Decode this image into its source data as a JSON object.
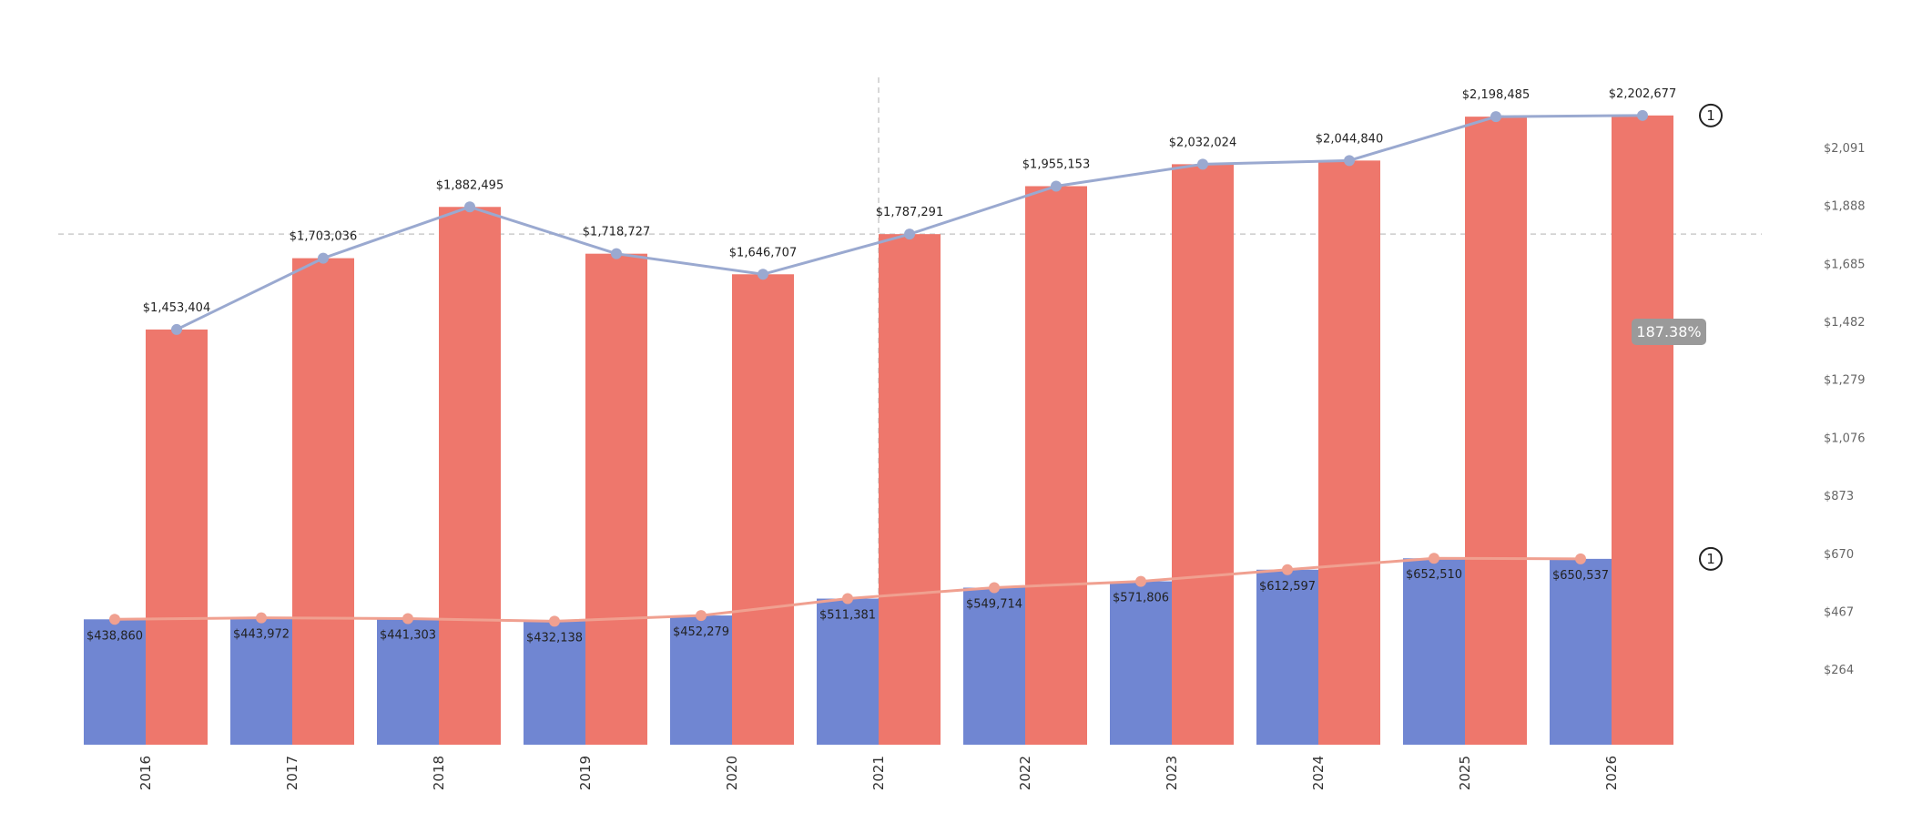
{
  "chart_data": {
    "type": "bar",
    "categories": [
      "2016",
      "2017",
      "2018",
      "2019",
      "2020",
      "2021",
      "2022",
      "2023",
      "2024",
      "2025",
      "2026"
    ],
    "series": [
      {
        "values": [
          438860,
          443972,
          441303,
          432138,
          452279,
          511381,
          549714,
          571806,
          612597,
          652510,
          650537
        ],
        "labels": [
          "$438,860",
          "$443,972",
          "$441,303",
          "$432,138",
          "$452,279",
          "$511,381",
          "$549,714",
          "$571,806",
          "$612,597",
          "$652,510",
          "$650,537"
        ],
        "color": "#7086d2",
        "line_color": "#f0a090"
      },
      {
        "values": [
          1453404,
          1703036,
          1882495,
          1718727,
          1646707,
          1787291,
          1955153,
          2032024,
          2044840,
          2198485,
          2202677
        ],
        "labels": [
          "$1,453,404",
          "$1,703,036",
          "$1,882,495",
          "$1,718,727",
          "$1,646,707",
          "$1,787,291",
          "$1,955,153",
          "$2,032,024",
          "$2,044,840",
          "$2,198,485",
          "$2,202,677"
        ],
        "color": "#ee776c",
        "line_color": "#9aa9d0"
      }
    ],
    "y_axis": {
      "position": "right",
      "ticks": [
        264,
        467,
        670,
        873,
        1076,
        1279,
        1482,
        1685,
        1888,
        2091
      ],
      "tick_labels": [
        "$264",
        "$467",
        "$670",
        "$873",
        "$1,076",
        "$1,279",
        "$1,482",
        "$1,685",
        "$1,888",
        "$2,091"
      ],
      "range_thousands": [
        7,
        2320
      ]
    },
    "reference_lines": {
      "horizontal_at": 1787291,
      "vertical_at_category": "2021",
      "style": "dashed"
    },
    "markers": [
      {
        "text": "1",
        "series_index": 1
      },
      {
        "text": "1",
        "series_index": 0
      }
    ],
    "annotation": {
      "text": "187.38%",
      "color": "#9a9a9a"
    },
    "grid": false,
    "legend": "none"
  }
}
